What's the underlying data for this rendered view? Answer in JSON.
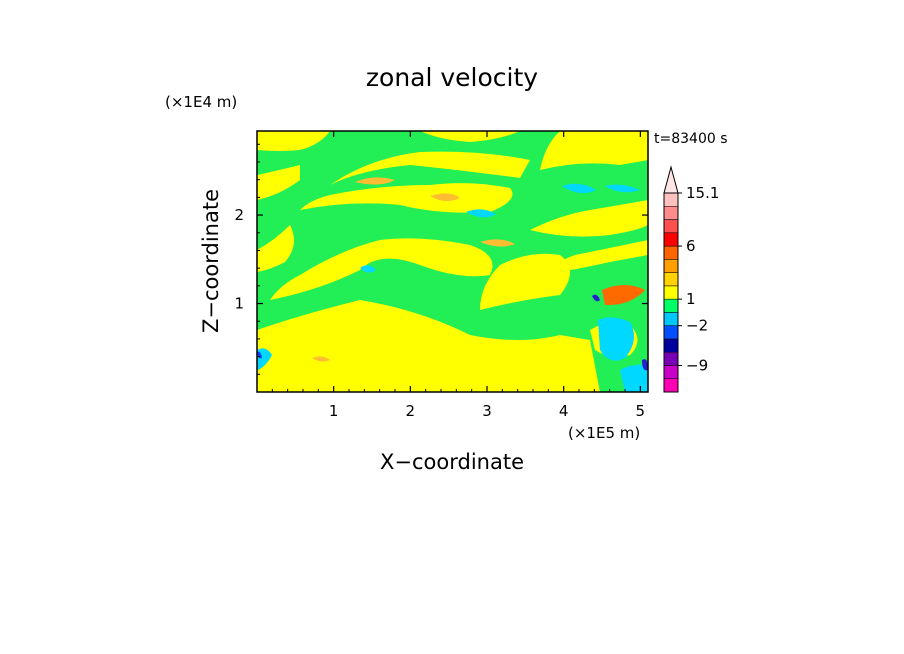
{
  "chart_data": {
    "type": "heatmap",
    "title": "zonal velocity",
    "time_label": "t=83400 s",
    "xlabel": "X−coordinate",
    "ylabel": "Z−coordinate",
    "x_scale_label": "(×1E5 m)",
    "y_scale_label": "(×1E4 m)",
    "xlim": [
      0,
      5.1
    ],
    "ylim": [
      0,
      2.95
    ],
    "x_ticks": [
      {
        "value": 1,
        "label": "1"
      },
      {
        "value": 2,
        "label": "2"
      },
      {
        "value": 3,
        "label": "3"
      },
      {
        "value": 4,
        "label": "4"
      },
      {
        "value": 5,
        "label": "5"
      }
    ],
    "y_ticks": [
      {
        "value": 1,
        "label": "1"
      },
      {
        "value": 2,
        "label": "2"
      }
    ],
    "colorbar": {
      "colors": [
        "#ff00b4",
        "#c800c8",
        "#7800b4",
        "#0000a0",
        "#0050ff",
        "#00c8ff",
        "#00ff64",
        "#ffff00",
        "#ffd200",
        "#ffa000",
        "#ff6400",
        "#ff0000",
        "#ff5050",
        "#ff8c8c",
        "#ffc0c0",
        "#ffe6e6"
      ],
      "labels": [
        {
          "value": "-9",
          "level": 2
        },
        {
          "value": "-2",
          "level": 5
        },
        {
          "value": "1",
          "level": 7
        },
        {
          "value": "6",
          "level": 11
        },
        {
          "value": "15.1",
          "level": 15
        }
      ]
    },
    "field_colors": {
      "background": "#22ee55",
      "positive": "#ffff00",
      "strong_positive": "#ffbe32",
      "negative": "#00d8ff",
      "strong_negative": "#0044ff",
      "extreme_negative": "#2222cc",
      "extreme_positive": "#ff6a00"
    }
  }
}
